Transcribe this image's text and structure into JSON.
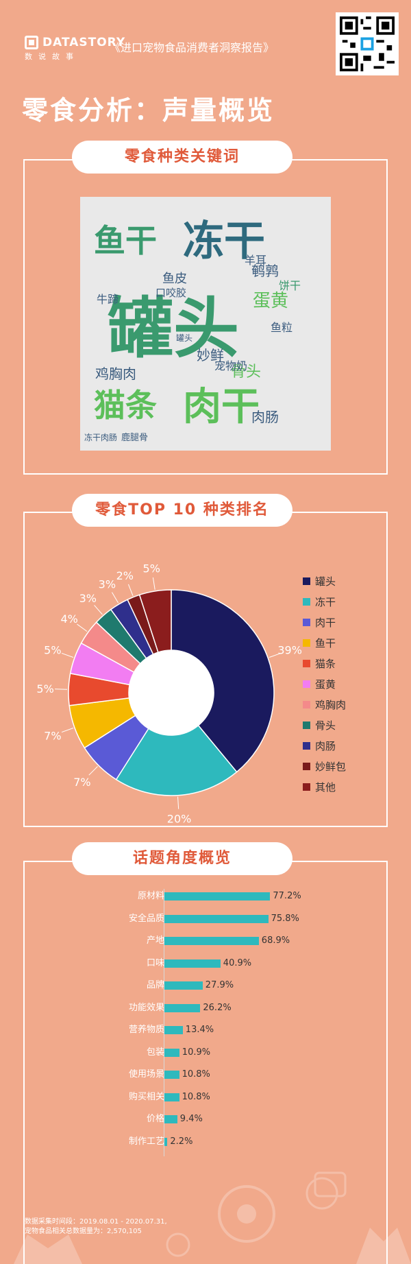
{
  "header": {
    "brand": "DATASTORY",
    "brand_sub": "数说故事",
    "report_title": "《进口宠物食品消费者洞察报告》"
  },
  "page_title": "零食分析：声量概览",
  "sections": {
    "keywords_title": "零食种类关键词",
    "top10_title": "零食TOP 10 种类排名",
    "topics_title": "话题角度概览"
  },
  "wordcloud": {
    "words": [
      {
        "text": "罐头",
        "size": "xl",
        "color": "#3a9a6e"
      },
      {
        "text": "冻干",
        "size": "l",
        "color": "#2e6a7e"
      },
      {
        "text": "肉干",
        "size": "l",
        "color": "#5cbf5a"
      },
      {
        "text": "鱼干",
        "size": "l",
        "color": "#3a9a6e"
      },
      {
        "text": "猫条",
        "size": "l",
        "color": "#5cbf5a"
      },
      {
        "text": "蛋黄",
        "size": "m",
        "color": "#5cbf5a"
      },
      {
        "text": "鹌鹑",
        "size": "m",
        "color": "#3a5b7e"
      },
      {
        "text": "鸡胸肉",
        "size": "m",
        "color": "#3a5b7e"
      },
      {
        "text": "妙鲜",
        "size": "m",
        "color": "#3a5b7e"
      },
      {
        "text": "骨头",
        "size": "m",
        "color": "#5cbf5a"
      },
      {
        "text": "鱼皮",
        "size": "m",
        "color": "#3a5b7e"
      },
      {
        "text": "肉肠",
        "size": "m",
        "color": "#3a5b7e"
      },
      {
        "text": "牛蹄",
        "size": "s",
        "color": "#3a5b7e"
      },
      {
        "text": "羊耳",
        "size": "s",
        "color": "#3a5b7e"
      },
      {
        "text": "宠物奶",
        "size": "s",
        "color": "#3a5b7e"
      },
      {
        "text": "鹿腿骨",
        "size": "s",
        "color": "#3a5b7e"
      },
      {
        "text": "饼干",
        "size": "s",
        "color": "#3a9a6e"
      },
      {
        "text": "鱼粒",
        "size": "s",
        "color": "#3a5b7e"
      },
      {
        "text": "口咬胶",
        "size": "s",
        "color": "#3a5b7e"
      },
      {
        "text": "冻干肉肠",
        "size": "xs",
        "color": "#3a5b7e"
      },
      {
        "text": "罐头",
        "size": "xs",
        "color": "#3a5b7e"
      }
    ]
  },
  "chart_data": [
    {
      "type": "pie",
      "title": "零食TOP 10 种类排名",
      "style": "donut",
      "categories": [
        "罐头",
        "冻干",
        "肉干",
        "鱼干",
        "猫条",
        "蛋黄",
        "鸡胸肉",
        "骨头",
        "肉肠",
        "妙鲜包",
        "其他"
      ],
      "values": [
        39,
        20,
        7,
        7,
        5,
        5,
        4,
        3,
        3,
        2,
        5
      ],
      "labels": [
        "39%",
        "20%",
        "7%",
        "7%",
        "5%",
        "5%",
        "4%",
        "3%",
        "3%",
        "2%",
        "5%"
      ],
      "colors": [
        "#1a1a5e",
        "#2eb9bd",
        "#5a5ad6",
        "#f5b800",
        "#e84a2e",
        "#f27df2",
        "#f48a8a",
        "#1f7a6e",
        "#2f2f8c",
        "#7a1a1a",
        "#8b1d1d"
      ],
      "legend_position": "right"
    },
    {
      "type": "bar",
      "orientation": "horizontal",
      "title": "话题角度概览",
      "categories": [
        "原材料",
        "安全品质",
        "产地",
        "口味",
        "品牌",
        "功能效果",
        "营养物质",
        "包装",
        "使用场景",
        "购买相关",
        "价格",
        "制作工艺"
      ],
      "values": [
        77.2,
        75.8,
        68.9,
        40.9,
        27.9,
        26.2,
        13.4,
        10.9,
        10.8,
        10.8,
        9.4,
        2.2
      ],
      "labels": [
        "77.2%",
        "75.8%",
        "68.9%",
        "40.9%",
        "27.9%",
        "26.2%",
        "13.4%",
        "10.9%",
        "10.8%",
        "10.8%",
        "9.4%",
        "2.2%"
      ],
      "xlim": [
        0,
        100
      ],
      "color": "#2eb9bd"
    }
  ],
  "footnote": {
    "line1": "数据采集时间段：2019.08.01 - 2020.07.31,",
    "line2": "宠物食品相关总数据量为：2,570,105"
  },
  "icons": {
    "qr": "qr-code-icon",
    "logo": "datastory-logo-icon"
  }
}
